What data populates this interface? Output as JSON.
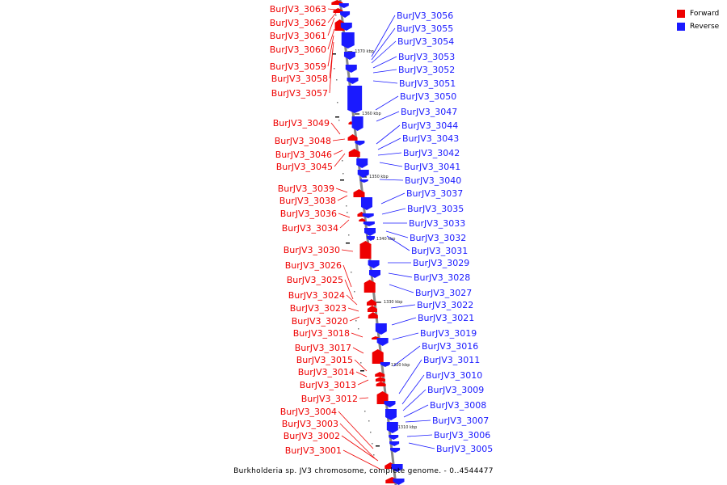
{
  "caption": "Burkholderia sp. JV3 chromosome, complete genome. - 0..4544477",
  "colors": {
    "forward": "#ee0000",
    "reverse": "#1a1aff",
    "backbone": "#888888"
  },
  "legend": [
    {
      "label": "Forward",
      "color": "#ee0000"
    },
    {
      "label": "Reverse",
      "color": "#1a1aff"
    }
  ],
  "ticks": [
    "1370 kbp",
    "1360 kbp",
    "1350 kbp",
    "1340 kbp",
    "1330 kbp",
    "1320 kbp",
    "1310 kbp"
  ],
  "forward_genes": [
    "BurJV3_3063",
    "BurJV3_3062",
    "BurJV3_3061",
    "BurJV3_3060",
    "BurJV3_3059",
    "BurJV3_3058",
    "BurJV3_3057",
    "BurJV3_3049",
    "BurJV3_3048",
    "BurJV3_3046",
    "BurJV3_3045",
    "BurJV3_3039",
    "BurJV3_3038",
    "BurJV3_3036",
    "BurJV3_3034",
    "BurJV3_3030",
    "BurJV3_3026",
    "BurJV3_3025",
    "BurJV3_3024",
    "BurJV3_3023",
    "BurJV3_3020",
    "BurJV3_3018",
    "BurJV3_3017",
    "BurJV3_3015",
    "BurJV3_3014",
    "BurJV3_3013",
    "BurJV3_3012",
    "BurJV3_3004",
    "BurJV3_3003",
    "BurJV3_3002",
    "BurJV3_3001"
  ],
  "reverse_genes": [
    "BurJV3_3056",
    "BurJV3_3055",
    "BurJV3_3054",
    "BurJV3_3053",
    "BurJV3_3052",
    "BurJV3_3051",
    "BurJV3_3050",
    "BurJV3_3047",
    "BurJV3_3044",
    "BurJV3_3043",
    "BurJV3_3042",
    "BurJV3_3041",
    "BurJV3_3040",
    "BurJV3_3037",
    "BurJV3_3035",
    "BurJV3_3033",
    "BurJV3_3032",
    "BurJV3_3031",
    "BurJV3_3029",
    "BurJV3_3028",
    "BurJV3_3027",
    "BurJV3_3022",
    "BurJV3_3021",
    "BurJV3_3019",
    "BurJV3_3016",
    "BurJV3_3011",
    "BurJV3_3010",
    "BurJV3_3009",
    "BurJV3_3008",
    "BurJV3_3007",
    "BurJV3_3006",
    "BurJV3_3005"
  ]
}
